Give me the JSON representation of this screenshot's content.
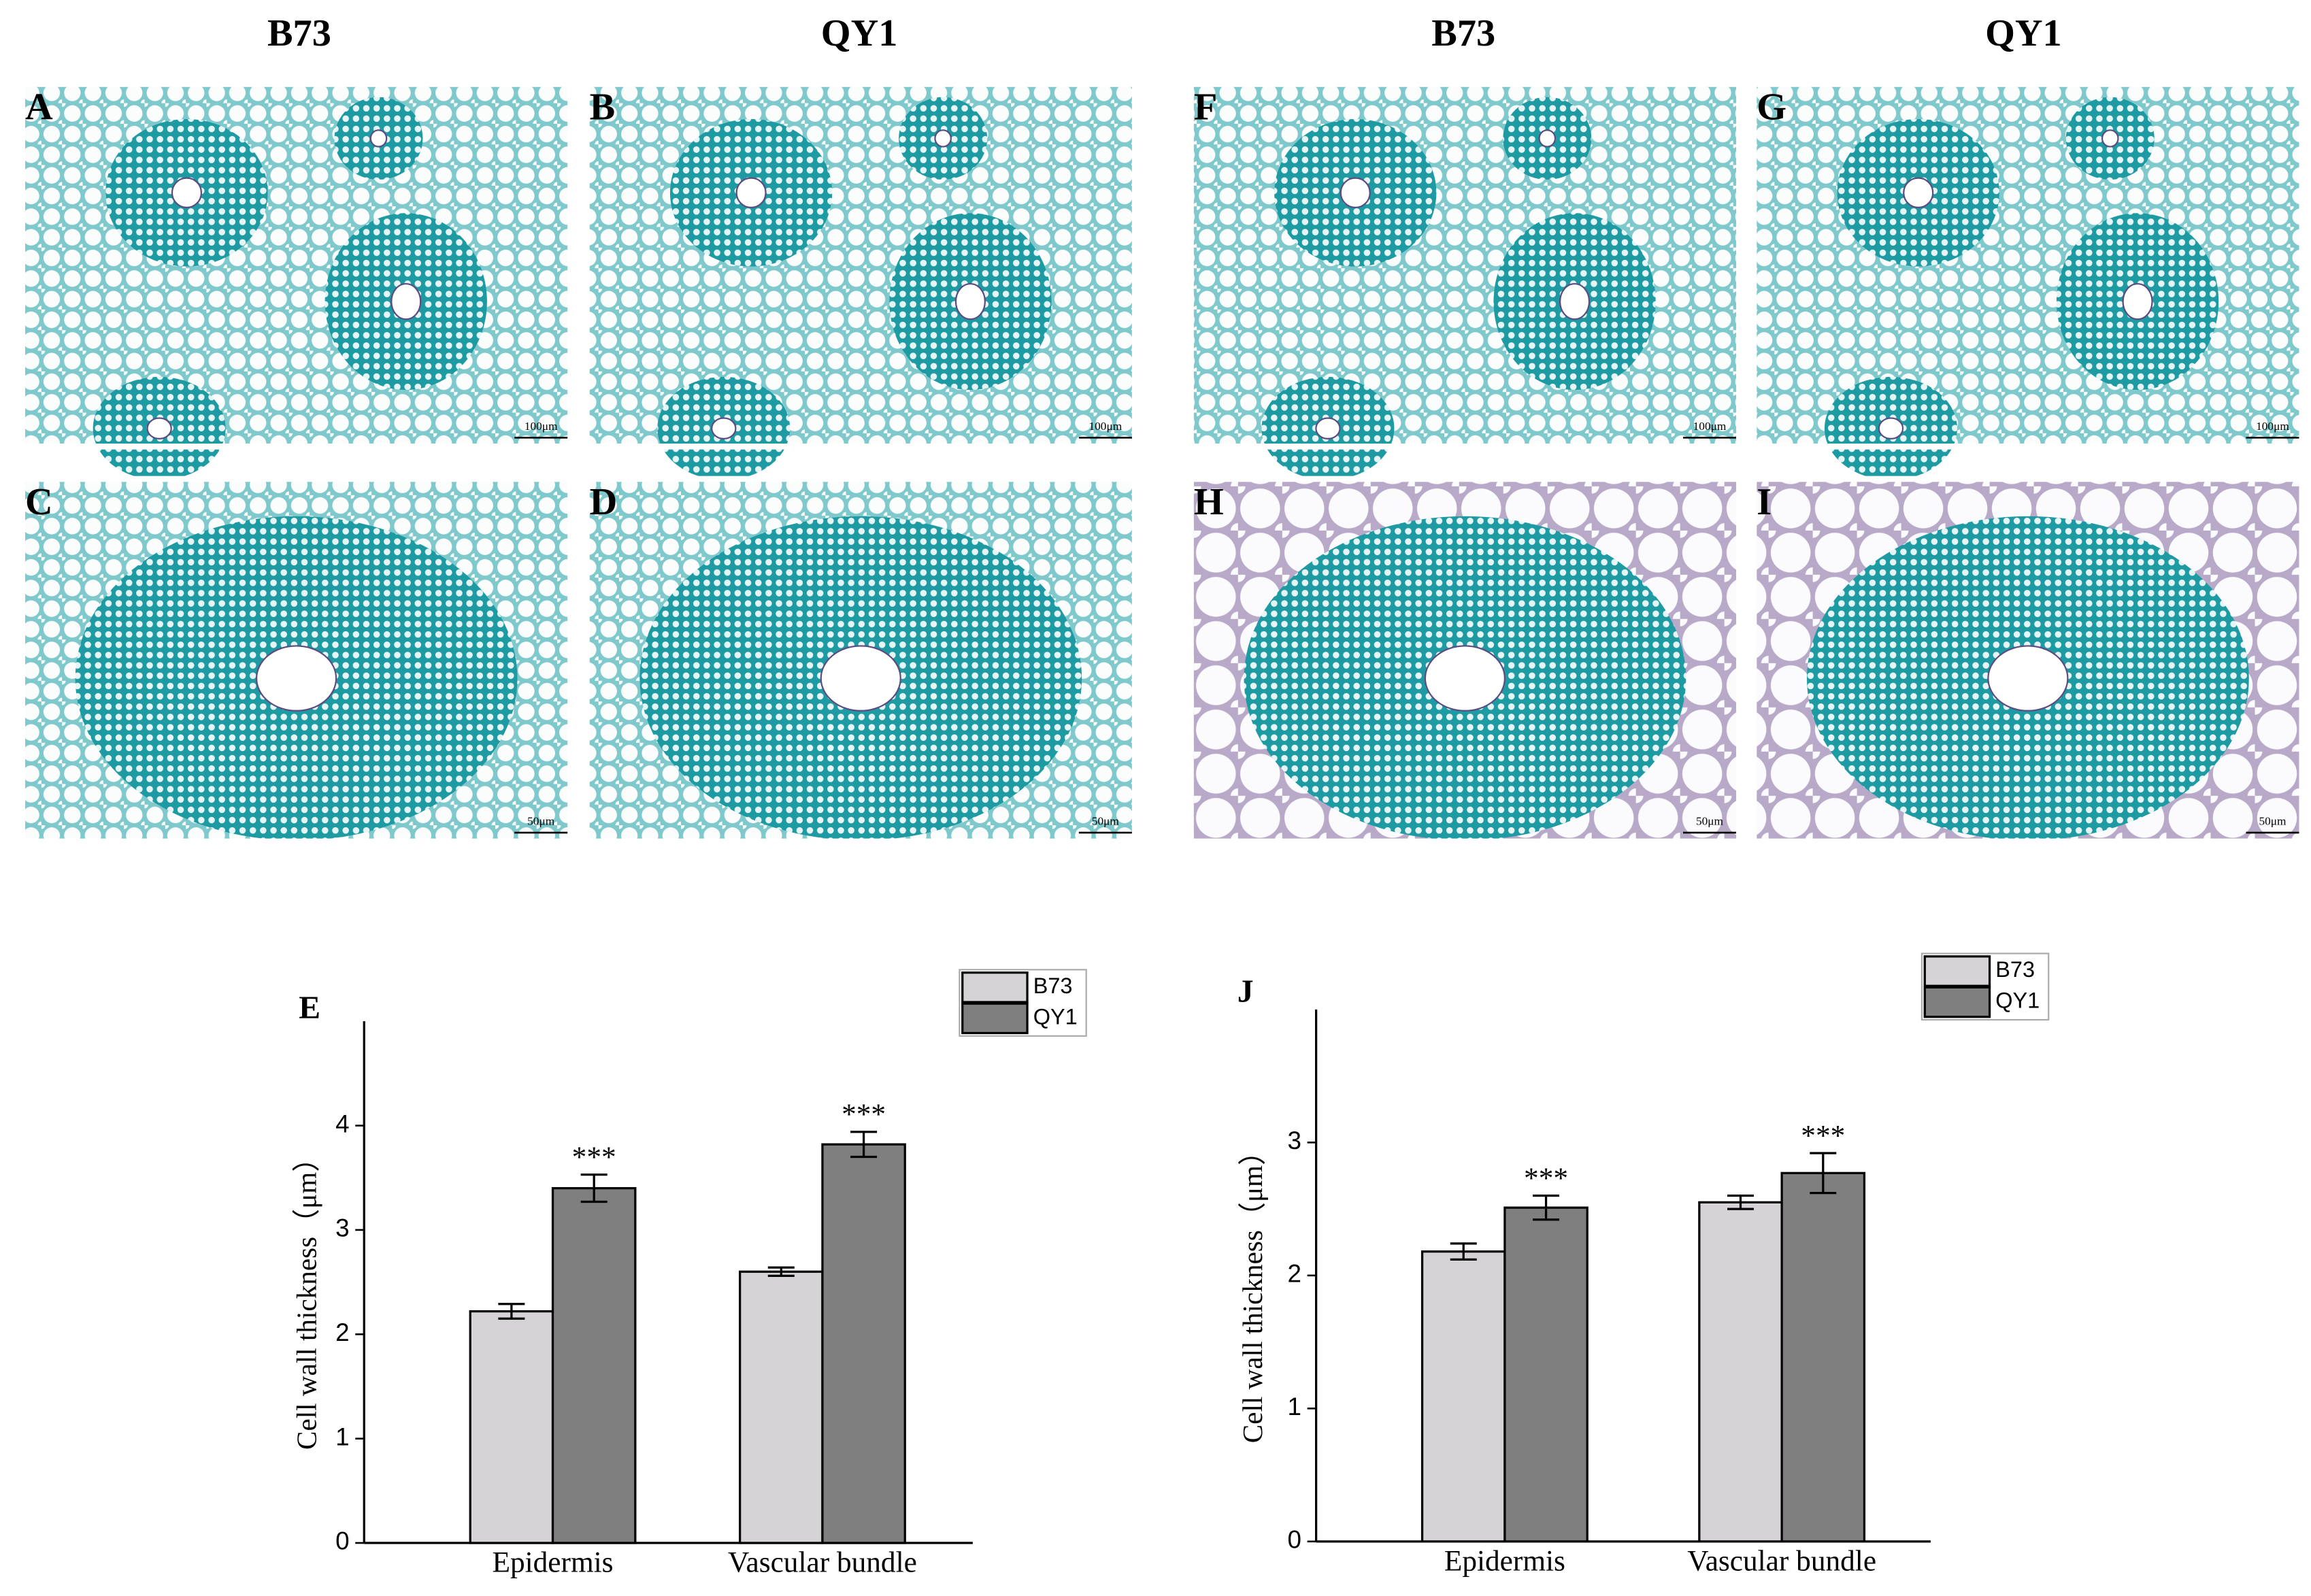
{
  "panels": {
    "headers": [
      "B73",
      "QY1",
      "B73",
      "QY1"
    ],
    "images": [
      {
        "label": "A",
        "scale_bar": "100μm"
      },
      {
        "label": "B",
        "scale_bar": "100μm"
      },
      {
        "label": "F",
        "scale_bar": "100μm"
      },
      {
        "label": "G",
        "scale_bar": "100μm"
      },
      {
        "label": "C",
        "scale_bar": "50μm"
      },
      {
        "label": "D",
        "scale_bar": "50μm"
      },
      {
        "label": "H",
        "scale_bar": "50μm"
      },
      {
        "label": "I",
        "scale_bar": "50μm"
      }
    ]
  },
  "chart_data": [
    {
      "type": "bar",
      "panel_label": "E",
      "y_label": "Cell wall thickness（μm）",
      "categories": [
        "Epidermis",
        "Vascular bundle"
      ],
      "series": [
        {
          "name": "B73",
          "color": "#d6d3d6",
          "values": [
            2.22,
            2.6
          ],
          "errors": [
            0.07,
            0.04
          ]
        },
        {
          "name": "QY1",
          "color": "#7f7f7f",
          "values": [
            3.4,
            3.82
          ],
          "errors": [
            0.13,
            0.12
          ],
          "significance": [
            "***",
            "***"
          ]
        }
      ],
      "ylim": [
        0,
        5
      ],
      "yticks": [
        0,
        1,
        2,
        3,
        4
      ]
    },
    {
      "type": "bar",
      "panel_label": "J",
      "y_label": "Cell wall thickness（μm）",
      "categories": [
        "Epidermis",
        "Vascular bundle"
      ],
      "series": [
        {
          "name": "B73",
          "color": "#d6d3d6",
          "values": [
            2.18,
            2.55
          ],
          "errors": [
            0.06,
            0.05
          ]
        },
        {
          "name": "QY1",
          "color": "#7f7f7f",
          "values": [
            2.51,
            2.77
          ],
          "errors": [
            0.09,
            0.15
          ],
          "significance": [
            "***",
            "***"
          ]
        }
      ],
      "ylim": [
        0,
        4
      ],
      "yticks": [
        0,
        1,
        2,
        3
      ]
    }
  ]
}
